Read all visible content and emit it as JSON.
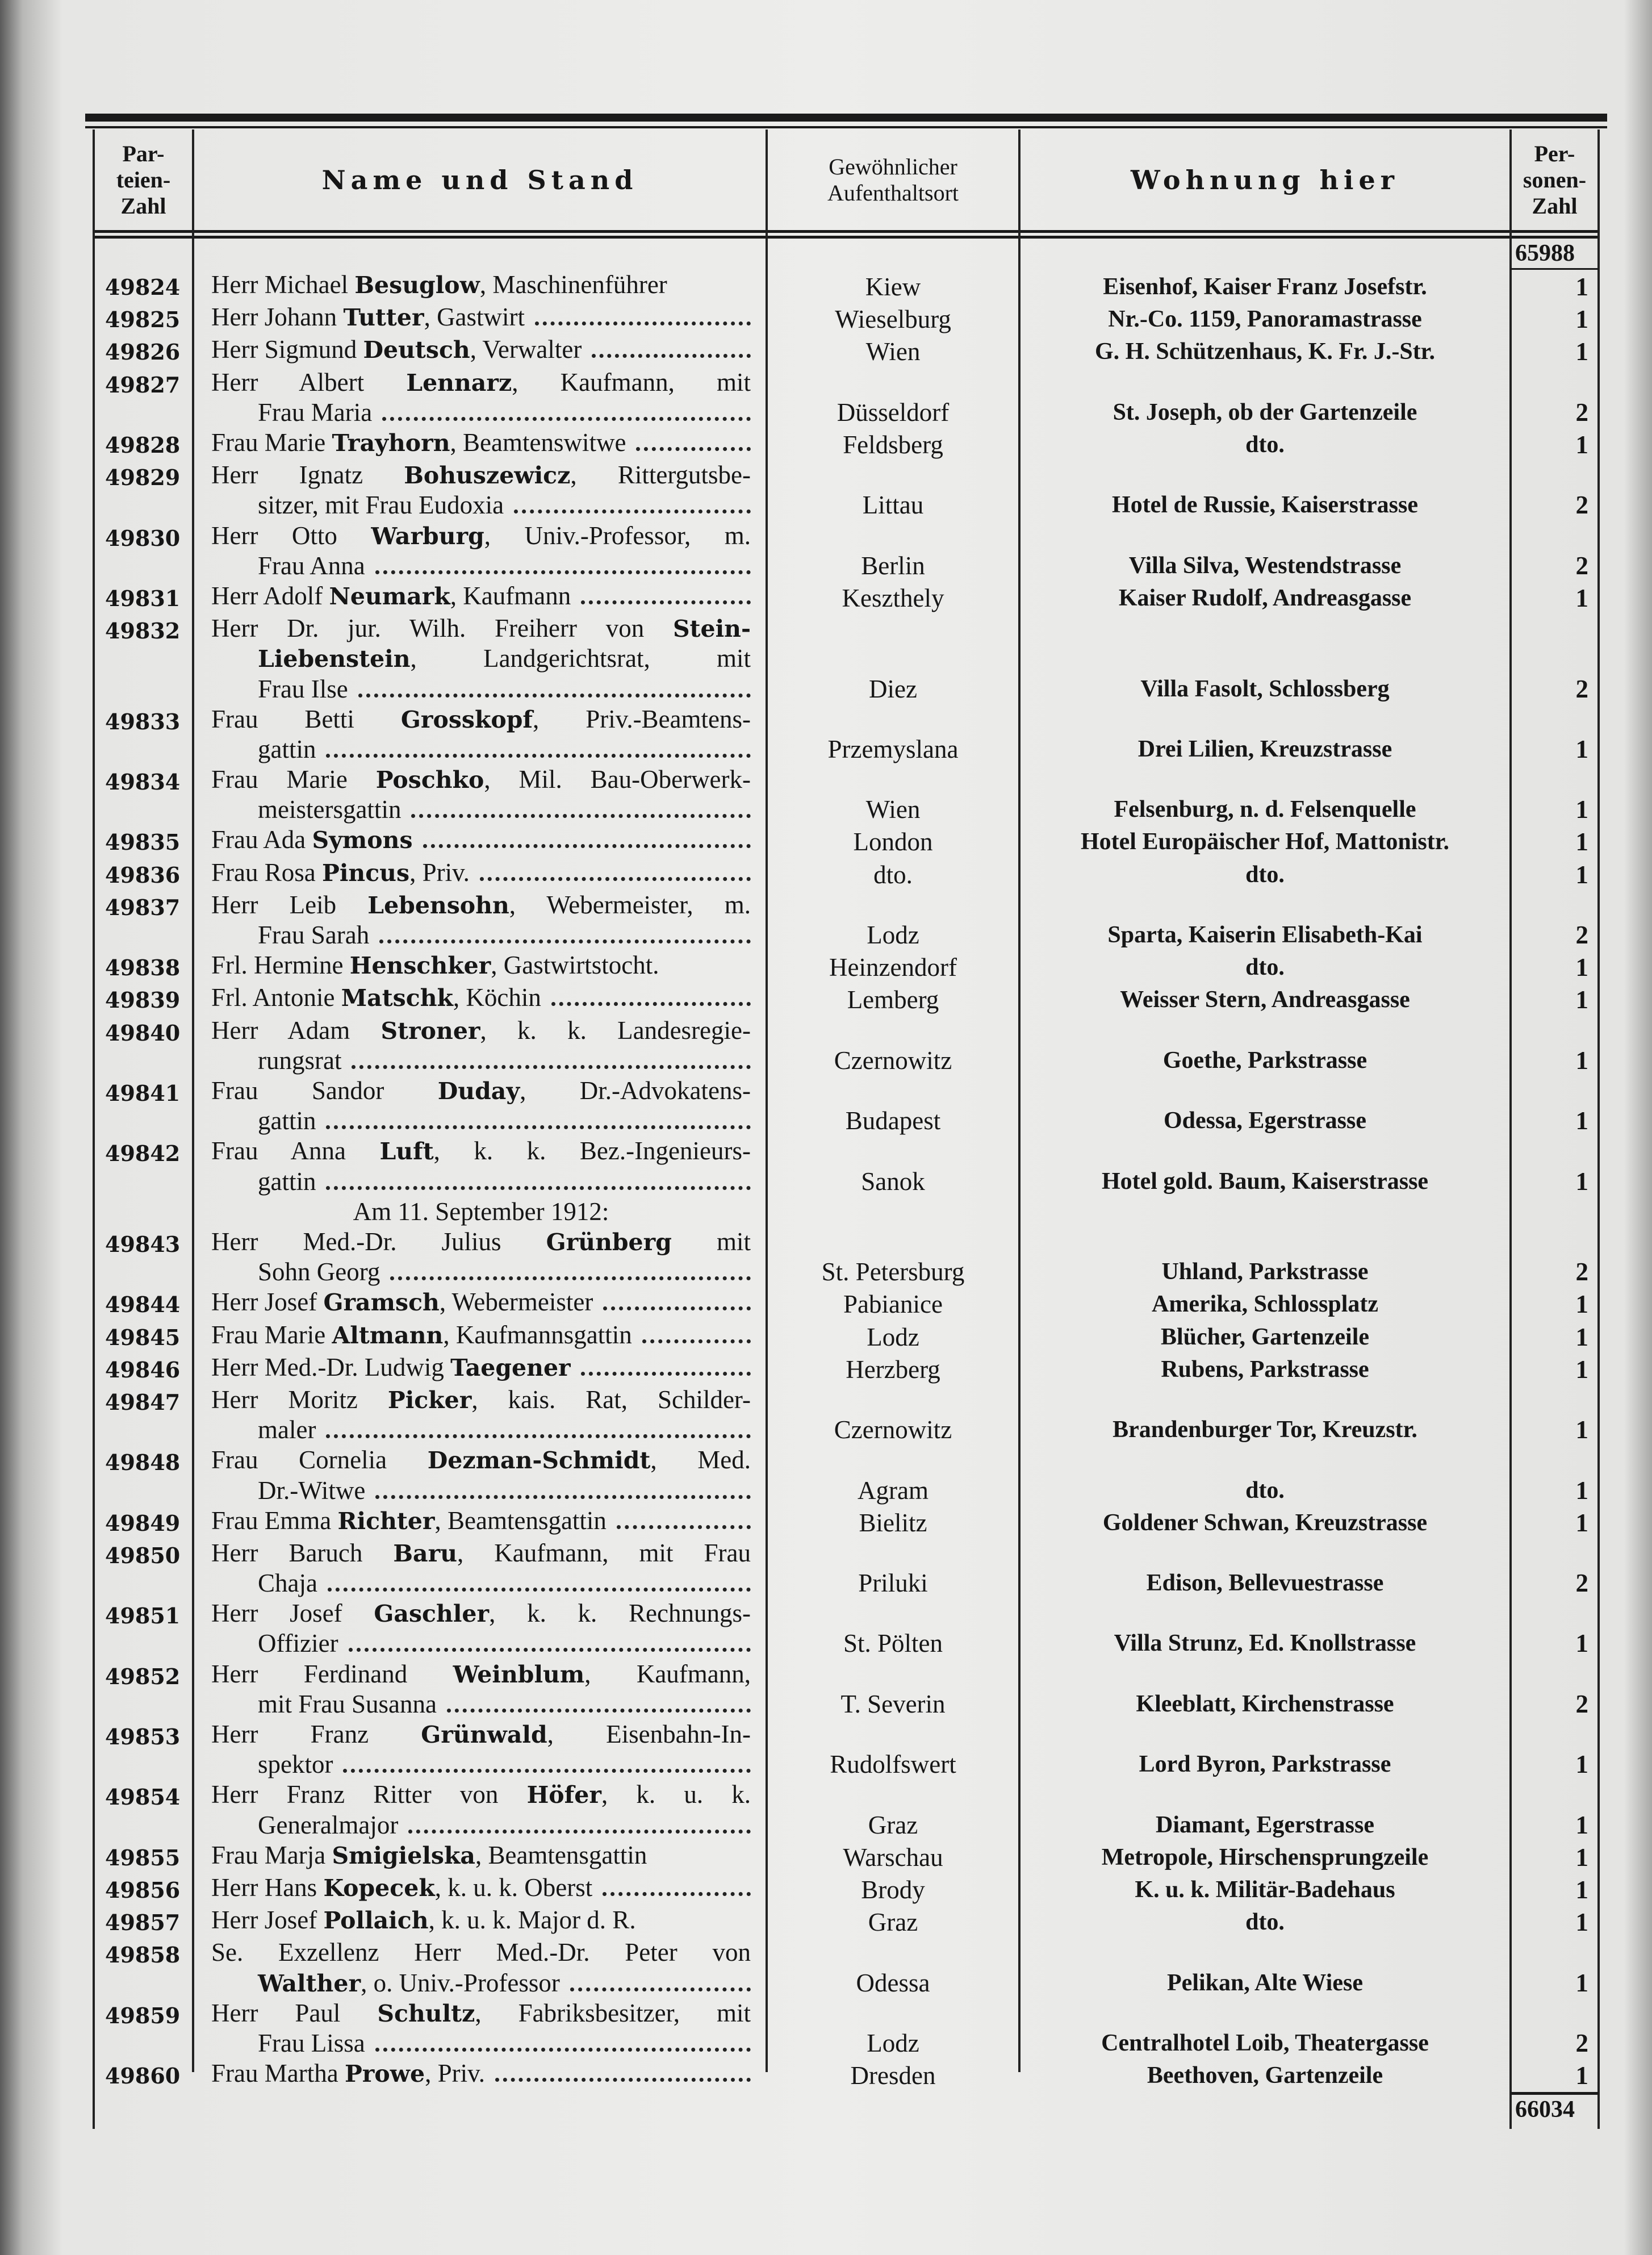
{
  "header": {
    "col_party": "Par-\nteien-\nZahl",
    "col_name": "Name und Stand",
    "col_origin": "Gewöhnlicher\nAufenthaltsort",
    "col_residence": "Wohnung hier",
    "col_persons": "Per-\nsonen-\nZahl"
  },
  "carry_over_total": "65988",
  "final_total": "66034",
  "entries": [
    {
      "no": "49824",
      "lines": [
        [
          {
            "t": "Herr Michael "
          },
          {
            "b": "Besuglow"
          },
          {
            "t": ", Maschinenführer"
          }
        ]
      ],
      "dots": false,
      "origin": "Kiew",
      "residence": "Eisenhof, Kaiser Franz Josefstr.",
      "persons": "1"
    },
    {
      "no": "49825",
      "lines": [
        [
          {
            "t": "Herr Johann "
          },
          {
            "b": "Tutter"
          },
          {
            "t": ", Gastwirt"
          }
        ]
      ],
      "dots": true,
      "origin": "Wieselburg",
      "residence": "Nr.-Co. 1159, Panoramastrasse",
      "persons": "1"
    },
    {
      "no": "49826",
      "lines": [
        [
          {
            "t": "Herr Sigmund "
          },
          {
            "b": "Deutsch"
          },
          {
            "t": ", Verwalter"
          }
        ]
      ],
      "dots": true,
      "origin": "Wien",
      "residence": "G. H. Schützenhaus, K. Fr. J.-Str.",
      "persons": "1"
    },
    {
      "no": "49827",
      "lines": [
        [
          {
            "t": "Herr Albert "
          },
          {
            "b": "Lennarz"
          },
          {
            "t": ", Kaufmann, mit"
          }
        ],
        [
          {
            "t": "Frau Maria"
          }
        ]
      ],
      "dots": true,
      "origin": "Düsseldorf",
      "residence": "St. Joseph, ob der Gartenzeile",
      "persons": "2"
    },
    {
      "no": "49828",
      "lines": [
        [
          {
            "t": "Frau Marie "
          },
          {
            "b": "Trayhorn"
          },
          {
            "t": ", Beamtenswitwe"
          }
        ]
      ],
      "dots": true,
      "origin": "Feldsberg",
      "residence": "dto.",
      "persons": "1"
    },
    {
      "no": "49829",
      "lines": [
        [
          {
            "t": "Herr Ignatz "
          },
          {
            "b": "Bohuszewicz"
          },
          {
            "t": ", Rittergutsbe-"
          }
        ],
        [
          {
            "t": "sitzer, mit Frau Eudoxia"
          }
        ]
      ],
      "dots": true,
      "origin": "Littau",
      "residence": "Hotel de Russie, Kaiserstrasse",
      "persons": "2"
    },
    {
      "no": "49830",
      "lines": [
        [
          {
            "t": "Herr Otto "
          },
          {
            "b": "Warburg"
          },
          {
            "t": ", Univ.-Professor, m."
          }
        ],
        [
          {
            "t": "Frau Anna"
          }
        ]
      ],
      "dots": true,
      "origin": "Berlin",
      "residence": "Villa Silva, Westendstrasse",
      "persons": "2"
    },
    {
      "no": "49831",
      "lines": [
        [
          {
            "t": "Herr Adolf "
          },
          {
            "b": "Neumark"
          },
          {
            "t": ", Kaufmann"
          }
        ]
      ],
      "dots": true,
      "origin": "Keszthely",
      "residence": "Kaiser Rudolf, Andreasgasse",
      "persons": "1"
    },
    {
      "no": "49832",
      "lines": [
        [
          {
            "t": "Herr Dr. jur. Wilh. Freiherr von "
          },
          {
            "b": "Stein-"
          }
        ],
        [
          {
            "b": "Liebenstein"
          },
          {
            "t": ", Landgerichtsrat, mit"
          }
        ],
        [
          {
            "t": "Frau Ilse"
          }
        ]
      ],
      "dots": true,
      "origin": "Diez",
      "residence": "Villa Fasolt, Schlossberg",
      "persons": "2"
    },
    {
      "no": "49833",
      "lines": [
        [
          {
            "t": "Frau Betti "
          },
          {
            "b": "Grosskopf"
          },
          {
            "t": ", Priv.-Beamtens-"
          }
        ],
        [
          {
            "t": "gattin"
          }
        ]
      ],
      "dots": true,
      "origin": "Przemyslana",
      "residence": "Drei Lilien, Kreuzstrasse",
      "persons": "1"
    },
    {
      "no": "49834",
      "lines": [
        [
          {
            "t": "Frau Marie "
          },
          {
            "b": "Poschko"
          },
          {
            "t": ", Mil. Bau-Oberwerk-"
          }
        ],
        [
          {
            "t": "meistersgattin"
          }
        ]
      ],
      "dots": true,
      "origin": "Wien",
      "residence": "Felsenburg, n. d. Felsenquelle",
      "persons": "1"
    },
    {
      "no": "49835",
      "lines": [
        [
          {
            "t": "Frau Ada "
          },
          {
            "b": "Symons"
          }
        ]
      ],
      "dots": true,
      "origin": "London",
      "residence": "Hotel Europäischer Hof, Mattonistr.",
      "persons": "1"
    },
    {
      "no": "49836",
      "lines": [
        [
          {
            "t": "Frau Rosa "
          },
          {
            "b": "Pincus"
          },
          {
            "t": ", Priv."
          }
        ]
      ],
      "dots": true,
      "origin": "dto.",
      "residence": "dto.",
      "persons": "1"
    },
    {
      "no": "49837",
      "lines": [
        [
          {
            "t": "Herr Leib "
          },
          {
            "b": "Lebensohn"
          },
          {
            "t": ", Webermeister, m."
          }
        ],
        [
          {
            "t": "Frau Sarah"
          }
        ]
      ],
      "dots": true,
      "origin": "Lodz",
      "residence": "Sparta, Kaiserin Elisabeth-Kai",
      "persons": "2"
    },
    {
      "no": "49838",
      "lines": [
        [
          {
            "t": "Frl. Hermine "
          },
          {
            "b": "Henschker"
          },
          {
            "t": ", Gastwirtstocht."
          }
        ]
      ],
      "dots": false,
      "origin": "Heinzendorf",
      "residence": "dto.",
      "persons": "1"
    },
    {
      "no": "49839",
      "lines": [
        [
          {
            "t": "Frl. Antonie "
          },
          {
            "b": "Matschk"
          },
          {
            "t": ", Köchin"
          }
        ]
      ],
      "dots": true,
      "origin": "Lemberg",
      "residence": "Weisser Stern, Andreasgasse",
      "persons": "1"
    },
    {
      "no": "49840",
      "lines": [
        [
          {
            "t": "Herr Adam "
          },
          {
            "b": "Stroner"
          },
          {
            "t": ", k. k. Landesregie-"
          }
        ],
        [
          {
            "t": "rungsrat"
          }
        ]
      ],
      "dots": true,
      "origin": "Czernowitz",
      "residence": "Goethe, Parkstrasse",
      "persons": "1"
    },
    {
      "no": "49841",
      "lines": [
        [
          {
            "t": "Frau Sandor "
          },
          {
            "b": "Duday"
          },
          {
            "t": ", Dr.-Advokatens-"
          }
        ],
        [
          {
            "t": "gattin"
          }
        ]
      ],
      "dots": true,
      "origin": "Budapest",
      "residence": "Odessa, Egerstrasse",
      "persons": "1"
    },
    {
      "no": "49842",
      "lines": [
        [
          {
            "t": "Frau Anna "
          },
          {
            "b": "Luft"
          },
          {
            "t": ", k. k. Bez.-Ingenieurs-"
          }
        ],
        [
          {
            "t": "gattin"
          }
        ]
      ],
      "dots": true,
      "origin": "Sanok",
      "residence": "Hotel gold. Baum, Kaiserstrasse",
      "persons": "1"
    },
    {
      "heading": "Am 11. September 1912:"
    },
    {
      "no": "49843",
      "lines": [
        [
          {
            "t": "Herr Med.-Dr. Julius "
          },
          {
            "b": "Grünberg"
          },
          {
            "t": " mit"
          }
        ],
        [
          {
            "t": "Sohn Georg"
          }
        ]
      ],
      "dots": true,
      "origin": "St. Petersburg",
      "residence": "Uhland, Parkstrasse",
      "persons": "2"
    },
    {
      "no": "49844",
      "lines": [
        [
          {
            "t": "Herr Josef "
          },
          {
            "b": "Gramsch"
          },
          {
            "t": ", Webermeister"
          }
        ]
      ],
      "dots": true,
      "origin": "Pabianice",
      "residence": "Amerika, Schlossplatz",
      "persons": "1"
    },
    {
      "no": "49845",
      "lines": [
        [
          {
            "t": "Frau Marie "
          },
          {
            "b": "Altmann"
          },
          {
            "t": ", Kaufmannsgattin"
          }
        ]
      ],
      "dots": true,
      "origin": "Lodz",
      "residence": "Blücher, Gartenzeile",
      "persons": "1"
    },
    {
      "no": "49846",
      "lines": [
        [
          {
            "t": "Herr Med.-Dr. Ludwig "
          },
          {
            "b": "Taegener"
          }
        ]
      ],
      "dots": true,
      "origin": "Herzberg",
      "residence": "Rubens, Parkstrasse",
      "persons": "1"
    },
    {
      "no": "49847",
      "lines": [
        [
          {
            "t": "Herr Moritz "
          },
          {
            "b": "Picker"
          },
          {
            "t": ", kais. Rat, Schilder-"
          }
        ],
        [
          {
            "t": "maler"
          }
        ]
      ],
      "dots": true,
      "origin": "Czernowitz",
      "residence": "Brandenburger Tor, Kreuzstr.",
      "persons": "1"
    },
    {
      "no": "49848",
      "lines": [
        [
          {
            "t": "Frau Cornelia "
          },
          {
            "b": "Dezman-Schmidt"
          },
          {
            "t": ", Med."
          }
        ],
        [
          {
            "t": "Dr.-Witwe"
          }
        ]
      ],
      "dots": true,
      "origin": "Agram",
      "residence": "dto.",
      "persons": "1"
    },
    {
      "no": "49849",
      "lines": [
        [
          {
            "t": "Frau Emma "
          },
          {
            "b": "Richter"
          },
          {
            "t": ", Beamtensgattin"
          }
        ]
      ],
      "dots": true,
      "origin": "Bielitz",
      "residence": "Goldener Schwan, Kreuzstrasse",
      "persons": "1"
    },
    {
      "no": "49850",
      "lines": [
        [
          {
            "t": "Herr Baruch "
          },
          {
            "b": "Baru"
          },
          {
            "t": ", Kaufmann, mit Frau"
          }
        ],
        [
          {
            "t": "Chaja"
          }
        ]
      ],
      "dots": true,
      "origin": "Priluki",
      "residence": "Edison, Bellevuestrasse",
      "persons": "2"
    },
    {
      "no": "49851",
      "lines": [
        [
          {
            "t": "Herr Josef "
          },
          {
            "b": "Gaschler"
          },
          {
            "t": ", k. k. Rechnungs-"
          }
        ],
        [
          {
            "t": "Offizier"
          }
        ]
      ],
      "dots": true,
      "origin": "St. Pölten",
      "residence": "Villa Strunz, Ed. Knollstrasse",
      "persons": "1"
    },
    {
      "no": "49852",
      "lines": [
        [
          {
            "t": "Herr Ferdinand "
          },
          {
            "b": "Weinblum"
          },
          {
            "t": ", Kaufmann,"
          }
        ],
        [
          {
            "t": "mit Frau Susanna"
          }
        ]
      ],
      "dots": true,
      "origin": "T. Severin",
      "residence": "Kleeblatt, Kirchenstrasse",
      "persons": "2"
    },
    {
      "no": "49853",
      "lines": [
        [
          {
            "t": "Herr Franz "
          },
          {
            "b": "Grünwald"
          },
          {
            "t": ", Eisenbahn-In-"
          }
        ],
        [
          {
            "t": "spektor"
          }
        ]
      ],
      "dots": true,
      "origin": "Rudolfswert",
      "residence": "Lord Byron, Parkstrasse",
      "persons": "1"
    },
    {
      "no": "49854",
      "lines": [
        [
          {
            "t": "Herr Franz Ritter von "
          },
          {
            "b": "Höfer"
          },
          {
            "t": ", k. u. k."
          }
        ],
        [
          {
            "t": "Generalmajor"
          }
        ]
      ],
      "dots": true,
      "origin": "Graz",
      "residence": "Diamant, Egerstrasse",
      "persons": "1"
    },
    {
      "no": "49855",
      "lines": [
        [
          {
            "t": "Frau Marja "
          },
          {
            "b": "Smigielska"
          },
          {
            "t": ", Beamtensgattin"
          }
        ]
      ],
      "dots": false,
      "origin": "Warschau",
      "residence": "Metropole, Hirschensprungzeile",
      "persons": "1"
    },
    {
      "no": "49856",
      "lines": [
        [
          {
            "t": "Herr Hans "
          },
          {
            "b": "Kopecek"
          },
          {
            "t": ", k. u. k. Oberst"
          }
        ]
      ],
      "dots": true,
      "origin": "Brody",
      "residence": "K. u. k. Militär-Badehaus",
      "persons": "1"
    },
    {
      "no": "49857",
      "lines": [
        [
          {
            "t": "Herr Josef "
          },
          {
            "b": "Pollaich"
          },
          {
            "t": ", k. u. k. Major d. R."
          }
        ]
      ],
      "dots": false,
      "origin": "Graz",
      "residence": "dto.",
      "persons": "1"
    },
    {
      "no": "49858",
      "lines": [
        [
          {
            "t": "Se. Exzellenz Herr Med.-Dr. Peter von"
          }
        ],
        [
          {
            "b": "Walther"
          },
          {
            "t": ", o. Univ.-Professor"
          }
        ]
      ],
      "dots": true,
      "origin": "Odessa",
      "residence": "Pelikan, Alte Wiese",
      "persons": "1"
    },
    {
      "no": "49859",
      "lines": [
        [
          {
            "t": "Herr Paul "
          },
          {
            "b": "Schultz"
          },
          {
            "t": ", Fabriksbesitzer, mit"
          }
        ],
        [
          {
            "t": "Frau Lissa"
          }
        ]
      ],
      "dots": true,
      "origin": "Lodz",
      "residence": "Centralhotel Loib, Theatergasse",
      "persons": "2"
    },
    {
      "no": "49860",
      "lines": [
        [
          {
            "t": "Frau Martha "
          },
          {
            "b": "Prowe"
          },
          {
            "t": ", Priv."
          }
        ]
      ],
      "dots": true,
      "origin": "Dresden",
      "residence": "Beethoven, Gartenzeile",
      "persons": "1"
    }
  ]
}
